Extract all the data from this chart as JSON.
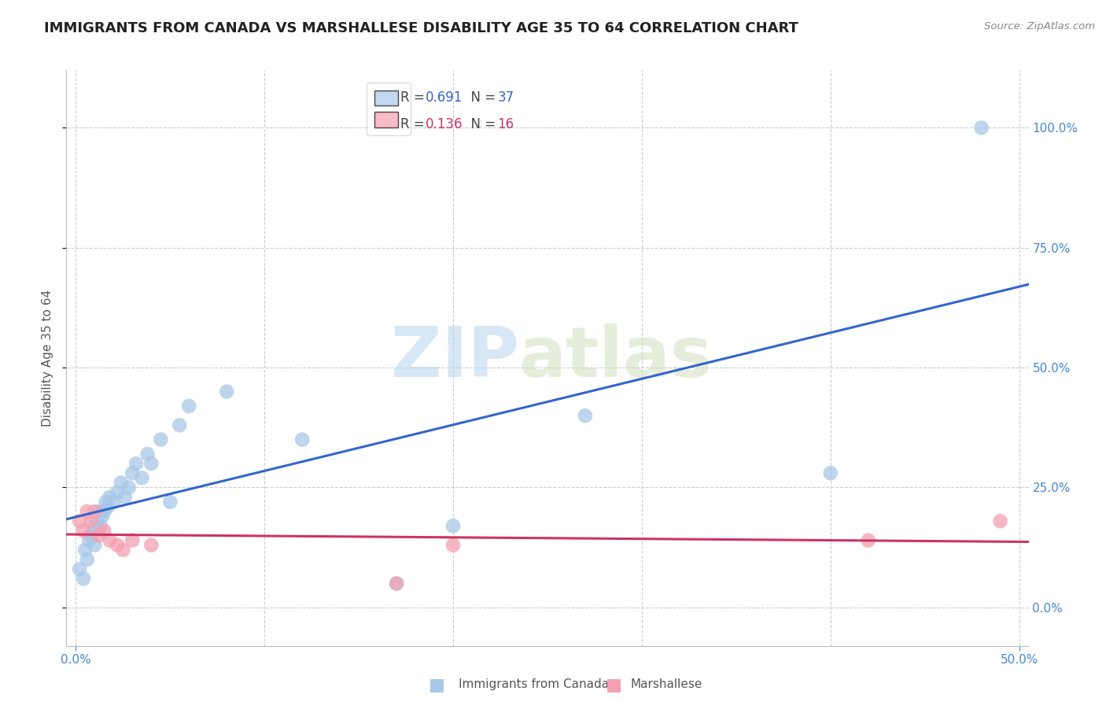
{
  "title": "IMMIGRANTS FROM CANADA VS MARSHALLESE DISABILITY AGE 35 TO 64 CORRELATION CHART",
  "source": "Source: ZipAtlas.com",
  "xlabel_blue": "Immigrants from Canada",
  "xlabel_pink": "Marshallese",
  "ylabel": "Disability Age 35 to 64",
  "R_blue": 0.691,
  "N_blue": 37,
  "R_pink": 0.136,
  "N_pink": 16,
  "xlim": [
    -0.005,
    0.505
  ],
  "ylim": [
    -0.08,
    1.12
  ],
  "xticks": [
    0.0,
    0.5
  ],
  "yticks": [
    0.0,
    0.25,
    0.5,
    0.75,
    1.0
  ],
  "background_color": "#ffffff",
  "grid_color": "#cccccc",
  "blue_color": "#a8c8e8",
  "blue_line_color": "#3366cc",
  "pink_color": "#f4a0b0",
  "pink_line_color": "#cc3366",
  "blue_points_x": [
    0.002,
    0.004,
    0.005,
    0.006,
    0.007,
    0.008,
    0.009,
    0.01,
    0.011,
    0.012,
    0.013,
    0.014,
    0.015,
    0.016,
    0.017,
    0.018,
    0.02,
    0.022,
    0.024,
    0.026,
    0.028,
    0.03,
    0.032,
    0.035,
    0.038,
    0.04,
    0.045,
    0.05,
    0.055,
    0.06,
    0.08,
    0.12,
    0.17,
    0.2,
    0.27,
    0.4,
    0.48
  ],
  "blue_points_y": [
    0.08,
    0.06,
    0.12,
    0.1,
    0.14,
    0.15,
    0.16,
    0.13,
    0.18,
    0.2,
    0.17,
    0.19,
    0.2,
    0.22,
    0.21,
    0.23,
    0.22,
    0.24,
    0.26,
    0.23,
    0.25,
    0.28,
    0.3,
    0.27,
    0.32,
    0.3,
    0.35,
    0.22,
    0.38,
    0.42,
    0.45,
    0.35,
    0.05,
    0.17,
    0.4,
    0.28,
    1.0
  ],
  "pink_points_x": [
    0.002,
    0.004,
    0.006,
    0.008,
    0.01,
    0.012,
    0.015,
    0.018,
    0.022,
    0.025,
    0.03,
    0.04,
    0.17,
    0.2,
    0.42,
    0.49
  ],
  "pink_points_y": [
    0.18,
    0.16,
    0.2,
    0.18,
    0.2,
    0.15,
    0.16,
    0.14,
    0.13,
    0.12,
    0.14,
    0.13,
    0.05,
    0.13,
    0.14,
    0.18
  ],
  "watermark_zip": "ZIP",
  "watermark_atlas": "atlas",
  "title_fontsize": 13,
  "axis_label_fontsize": 11,
  "tick_fontsize": 11,
  "legend_fontsize": 12
}
